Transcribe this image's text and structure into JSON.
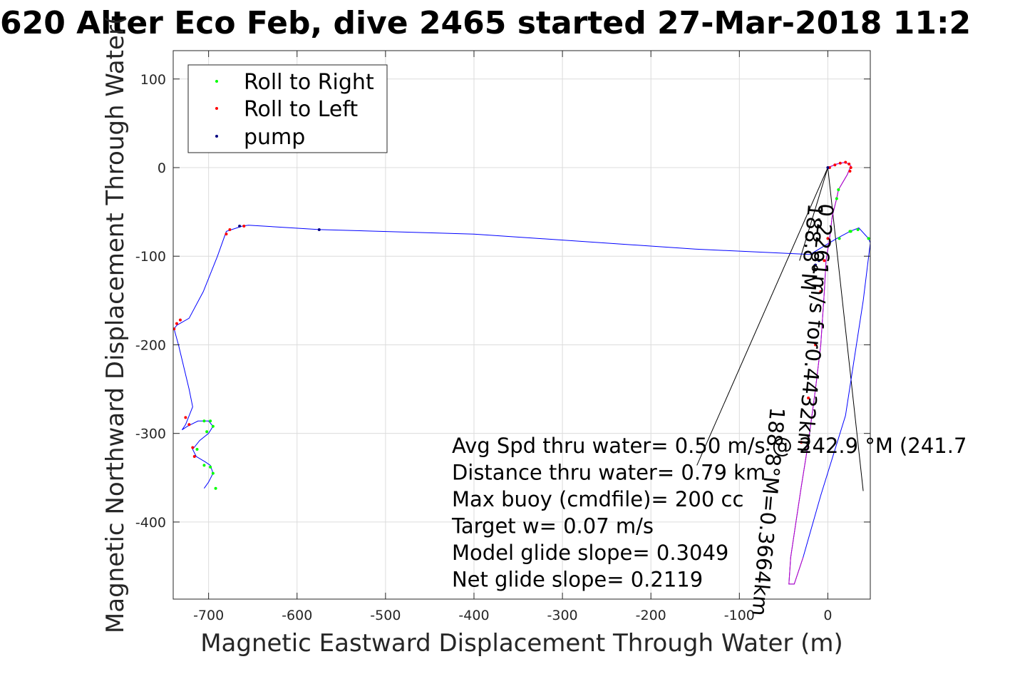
{
  "chart_data": {
    "type": "line",
    "title": "620 Alter Eco Feb, dive 2465 started 27-Mar-2018 11:2",
    "xlabel": "Magnetic Eastward Displacement Through Water (m)",
    "ylabel": "Magnetic Northward Displacement Through Water(",
    "xlim": [
      -740,
      48
    ],
    "ylim": [
      -487,
      132
    ],
    "xticks": [
      -700,
      -600,
      -500,
      -400,
      -300,
      -200,
      -100,
      0
    ],
    "yticks": [
      100,
      0,
      -100,
      -200,
      -300,
      -400
    ],
    "grid": true,
    "legend_position": "top-left",
    "legend": [
      {
        "label": "Roll to Right",
        "color": "#00ff00"
      },
      {
        "label": "Roll to Left",
        "color": "#ff0000"
      },
      {
        "label": "pump",
        "color": "#000080"
      }
    ],
    "track_color": "#0000ff",
    "track": {
      "x": [
        0,
        10,
        20,
        26,
        22,
        12,
        10,
        5,
        2,
        -2,
        -4,
        -8,
        -14,
        -22,
        -30,
        -36,
        -42,
        -44,
        -38,
        -28,
        -8,
        20,
        40,
        48,
        46,
        35,
        25,
        10,
        -20,
        -150,
        -400,
        -575,
        -655,
        -662,
        -668,
        -680,
        -690,
        -706,
        -722,
        -736,
        -739,
        -734,
        -722,
        -718,
        -726,
        -730,
        -724,
        -712,
        -700,
        -695,
        -700,
        -710,
        -718,
        -714,
        -704,
        -698,
        -695,
        -700,
        -705
      ],
      "y": [
        0,
        4,
        6,
        2,
        -8,
        -25,
        -35,
        -55,
        -80,
        -105,
        -140,
        -200,
        -250,
        -310,
        -360,
        -400,
        -440,
        -470,
        -470,
        -440,
        -370,
        -280,
        -150,
        -85,
        -80,
        -68,
        -72,
        -80,
        -98,
        -92,
        -75,
        -70,
        -65,
        -66,
        -68,
        -72,
        -100,
        -140,
        -170,
        -178,
        -182,
        -200,
        -250,
        -270,
        -290,
        -296,
        -292,
        -286,
        -286,
        -292,
        -300,
        -308,
        -318,
        -326,
        -332,
        -336,
        -345,
        -355,
        -362
      ]
    },
    "roll_right_points": {
      "x": [
        12,
        10,
        26,
        46,
        34,
        25,
        13,
        -705,
        -698,
        -695,
        -702,
        -713,
        -705,
        -698,
        -695,
        -692
      ],
      "y": [
        -25,
        -35,
        -72,
        -80,
        -70,
        -72,
        -80,
        -286,
        -286,
        -292,
        -298,
        -318,
        -336,
        -338,
        -345,
        -362
      ]
    },
    "roll_left_points": {
      "x": [
        2,
        8,
        14,
        20,
        24,
        26,
        25,
        0,
        -4,
        -8,
        -14,
        -22,
        -30,
        -680,
        -676,
        -660,
        -736,
        -739,
        -732,
        -726,
        -722,
        -718,
        -716
      ],
      "y": [
        0,
        3,
        5,
        6,
        4,
        0,
        -4,
        -80,
        -105,
        -140,
        -200,
        -260,
        -310,
        -75,
        -70,
        -66,
        -176,
        -182,
        -172,
        -282,
        -290,
        -316,
        -326
      ]
    },
    "pump_points": {
      "x": [
        0,
        -575,
        -665,
        -10,
        -14
      ],
      "y": [
        0,
        -70,
        -66,
        -105,
        -110
      ]
    },
    "vector_lines": [
      {
        "from": [
          0,
          0
        ],
        "to": [
          -148,
          -336
        ]
      },
      {
        "from": [
          0,
          0
        ],
        "to": [
          40,
          -365
        ]
      },
      {
        "from": [
          0,
          0
        ],
        "to": [
          -32,
          -105
        ]
      }
    ],
    "rotated_labels": [
      {
        "text": "0.2261m/s for0.4432km",
        "anchor": [
          -10,
          -40
        ],
        "angle_deg": 95
      },
      {
        "text": "188.8°M",
        "anchor": [
          -22,
          -40
        ],
        "angle_deg": 95
      },
      {
        "text": "188.8°M=0.3664km",
        "anchor": [
          -65,
          -270
        ],
        "angle_deg": 95
      }
    ],
    "annotations": [
      "Avg Spd thru water=  0.50 m/s @ 242.9 °M (241.7",
      "Distance thru water=  0.79 km",
      "Max buoy (cmdfile)= 200 cc",
      "Target w= 0.07 m/s",
      "Model glide slope= 0.3049",
      "Net glide slope= 0.2119"
    ],
    "annotation_anchor": [
      -425,
      -322
    ]
  }
}
